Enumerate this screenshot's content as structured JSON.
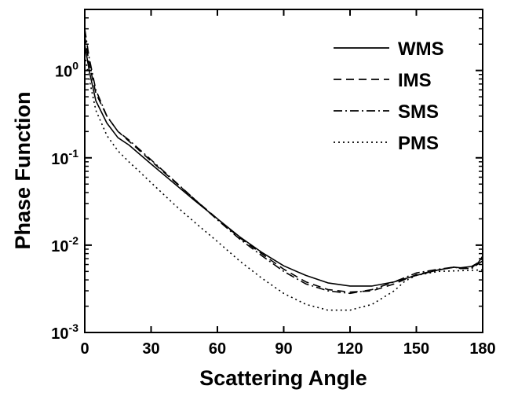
{
  "chart_data": {
    "type": "line",
    "xlabel": "Scattering Angle",
    "ylabel": "Phase Function",
    "xlim": [
      0,
      180
    ],
    "ylim": [
      0.001,
      5
    ],
    "yscale": "log",
    "x_ticks": [
      "0",
      "30",
      "60",
      "90",
      "120",
      "150",
      "180"
    ],
    "y_ticks": [
      {
        "value": 1,
        "base": "10",
        "exp": "0"
      },
      {
        "value": 0.1,
        "base": "10",
        "exp": "-1"
      },
      {
        "value": 0.01,
        "base": "10",
        "exp": "-2"
      },
      {
        "value": 0.001,
        "base": "10",
        "exp": "-3"
      }
    ],
    "legend_position": "top-right",
    "grid": false,
    "series": [
      {
        "name": "WMS",
        "dash": "solid",
        "x": [
          0,
          2,
          5,
          10,
          15,
          20,
          30,
          40,
          50,
          60,
          70,
          80,
          90,
          100,
          110,
          120,
          130,
          140,
          150,
          160,
          167,
          170,
          175,
          178,
          180
        ],
        "y": [
          2.0,
          1.0,
          0.45,
          0.25,
          0.17,
          0.14,
          0.085,
          0.052,
          0.032,
          0.02,
          0.0125,
          0.0083,
          0.0058,
          0.0045,
          0.0037,
          0.0034,
          0.0034,
          0.0038,
          0.0045,
          0.0052,
          0.0056,
          0.0055,
          0.0057,
          0.0063,
          0.0075
        ]
      },
      {
        "name": "IMS",
        "dash": "dashed",
        "x": [
          0,
          2,
          5,
          10,
          15,
          20,
          30,
          40,
          50,
          60,
          70,
          80,
          90,
          100,
          110,
          120,
          130,
          140,
          150,
          160,
          167,
          170,
          175,
          180
        ],
        "y": [
          2.5,
          1.2,
          0.55,
          0.3,
          0.2,
          0.155,
          0.092,
          0.055,
          0.033,
          0.02,
          0.0122,
          0.008,
          0.0053,
          0.0038,
          0.0031,
          0.0029,
          0.003,
          0.0036,
          0.0046,
          0.0052,
          0.0056,
          0.0054,
          0.0055,
          0.007
        ]
      },
      {
        "name": "SMS",
        "dash": "dashdot",
        "x": [
          0,
          2,
          5,
          10,
          15,
          20,
          30,
          40,
          50,
          60,
          70,
          80,
          90,
          100,
          110,
          120,
          130,
          140,
          150,
          160,
          167,
          170,
          175,
          180
        ],
        "y": [
          3.0,
          1.4,
          0.6,
          0.3,
          0.2,
          0.16,
          0.095,
          0.056,
          0.033,
          0.0195,
          0.0118,
          0.0076,
          0.005,
          0.0036,
          0.003,
          0.0028,
          0.0031,
          0.0038,
          0.0048,
          0.0053,
          0.0056,
          0.0054,
          0.0054,
          0.0066
        ]
      },
      {
        "name": "PMS",
        "dash": "dotted",
        "x": [
          0,
          2,
          5,
          10,
          15,
          20,
          30,
          40,
          50,
          60,
          70,
          80,
          90,
          100,
          110,
          120,
          130,
          140,
          145,
          150,
          160,
          170,
          180
        ],
        "y": [
          1.5,
          0.8,
          0.35,
          0.18,
          0.12,
          0.09,
          0.052,
          0.03,
          0.018,
          0.011,
          0.0066,
          0.0042,
          0.0028,
          0.0021,
          0.0018,
          0.0018,
          0.0021,
          0.003,
          0.0039,
          0.0045,
          0.005,
          0.0051,
          0.0052
        ]
      }
    ]
  }
}
